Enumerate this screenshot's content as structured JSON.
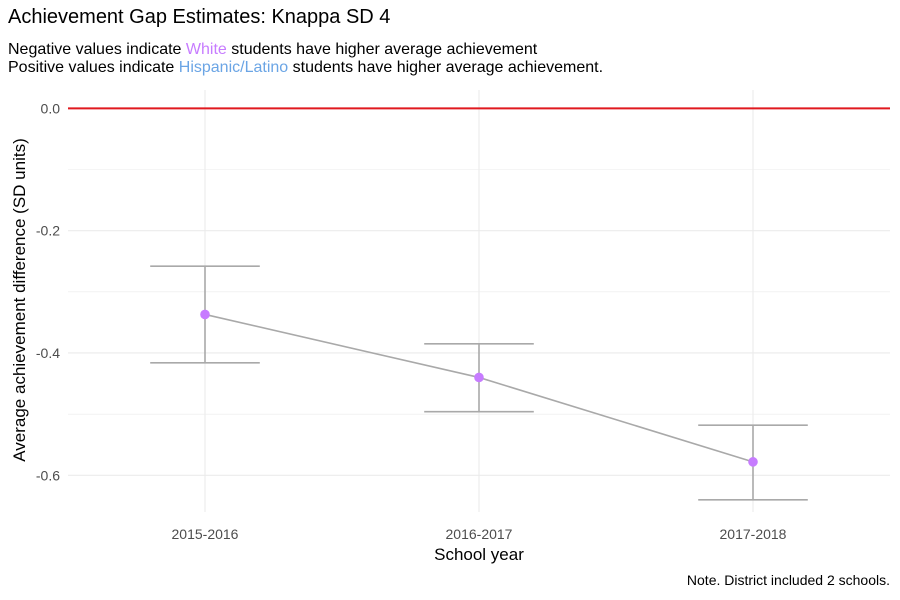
{
  "chart_data": {
    "type": "line",
    "title": "Achievement Gap Estimates: Knappa SD 4",
    "subtitle": {
      "line1": {
        "before": "Negative values indicate ",
        "highlight": "White",
        "after": " students have higher average achievement"
      },
      "line2": {
        "before": "Positive values indicate ",
        "highlight": "Hispanic/Latino",
        "after": " students have higher average achievement."
      }
    },
    "caption": "Note. District included 2 schools.",
    "xlabel": "School year",
    "ylabel": "Average achievement difference (SD units)",
    "categories": [
      "2015-2016",
      "2016-2017",
      "2017-2018"
    ],
    "series": [
      {
        "values": [
          -0.337,
          -0.44,
          -0.578
        ],
        "lower": [
          -0.416,
          -0.496,
          -0.64
        ],
        "upper": [
          -0.258,
          -0.385,
          -0.518
        ]
      }
    ],
    "reference_line": {
      "y": 0.0,
      "color": "#e0191f"
    },
    "yticks": [
      0.0,
      -0.2,
      -0.4,
      -0.6
    ],
    "yticklabels": [
      "0.0",
      "-0.2",
      "-0.4",
      "-0.6"
    ],
    "ylim": [
      -0.66,
      0.03
    ],
    "grid": true,
    "colors": {
      "point": "#c77cff",
      "line": "#a9a9a9",
      "errorbar": "#a9a9a9",
      "grid": "#ebebeb",
      "white_label": "#c77cff",
      "hispanic_label": "#6ba5e5"
    }
  }
}
